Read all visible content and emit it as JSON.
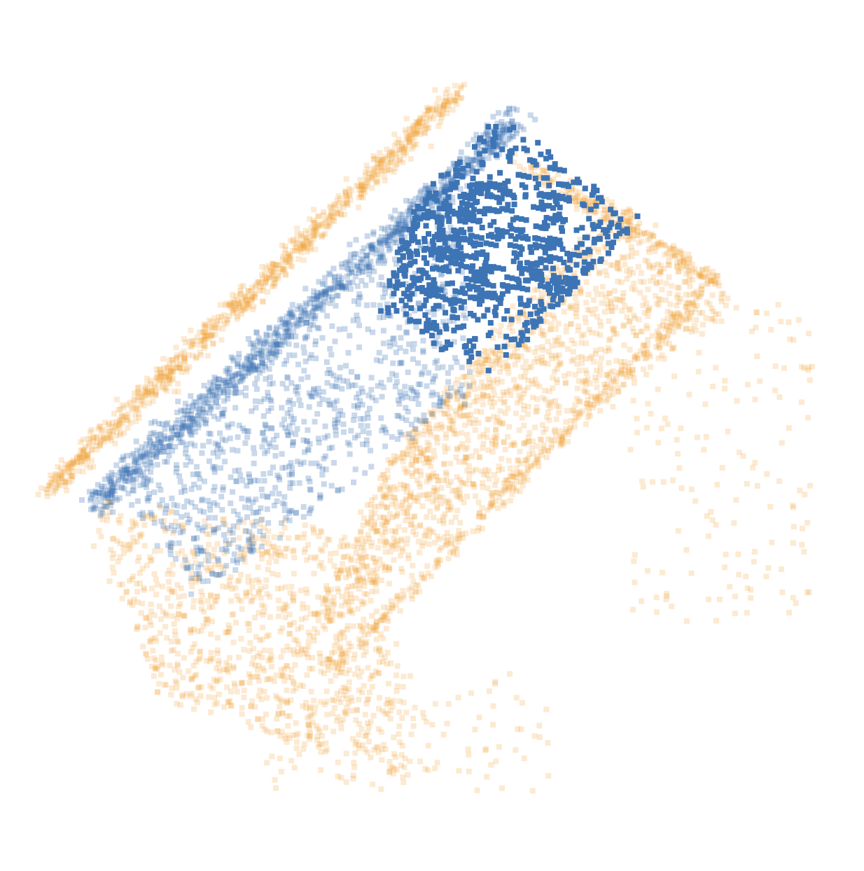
{
  "chart_data": {
    "type": "scatter",
    "title": "",
    "xlabel": "",
    "ylabel": "",
    "grid": false,
    "legend": "none",
    "marker": "square",
    "series": [
      {
        "color": "#f0a030",
        "emphasis": "faint"
      },
      {
        "color": "#3d74b5",
        "emphasis": "faint"
      },
      {
        "color": "#3d74b5",
        "emphasis": "solid"
      }
    ]
  }
}
